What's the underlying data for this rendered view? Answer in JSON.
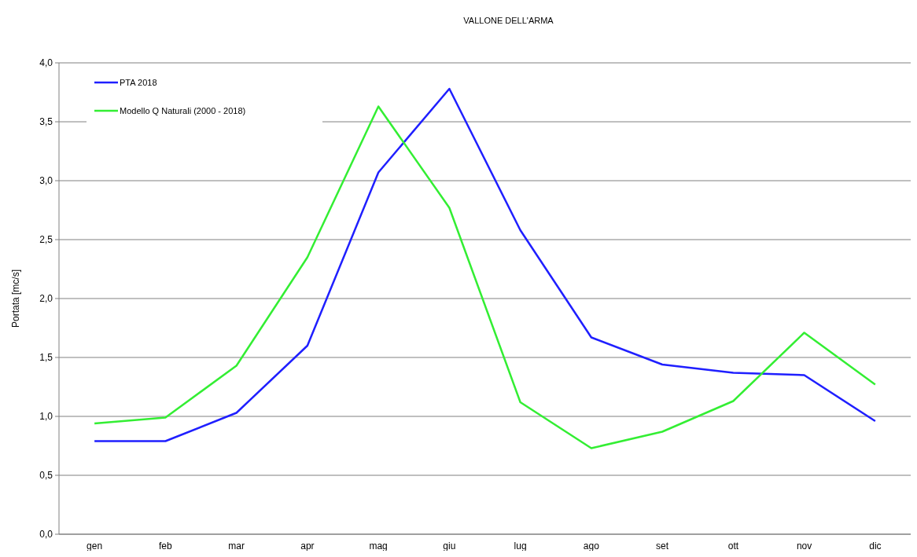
{
  "chart_data": {
    "type": "line",
    "title": "VALLONE DELL'ARMA",
    "ylabel": "Portata [mc/s]",
    "categories": [
      "gen",
      "feb",
      "mar",
      "apr",
      "mag",
      "giu",
      "lug",
      "ago",
      "set",
      "ott",
      "nov",
      "dic"
    ],
    "series": [
      {
        "name": "PTA 2018",
        "color": "#1f1fff",
        "values": [
          0.79,
          0.79,
          1.03,
          1.6,
          3.07,
          3.78,
          2.58,
          1.67,
          1.44,
          1.37,
          1.35,
          0.96
        ]
      },
      {
        "name": "Modello Q Naturali (2000 - 2018)",
        "color": "#33ee33",
        "values": [
          0.94,
          0.99,
          1.43,
          2.35,
          3.63,
          2.77,
          1.12,
          0.73,
          0.87,
          1.13,
          1.71,
          1.27
        ]
      }
    ],
    "ylim": [
      0,
      4
    ],
    "yticks": [
      {
        "value": 0,
        "label": "0,0"
      },
      {
        "value": 0.5,
        "label": "0,5"
      },
      {
        "value": 1,
        "label": "1,0"
      },
      {
        "value": 1.5,
        "label": "1,5"
      },
      {
        "value": 2,
        "label": "2,0"
      },
      {
        "value": 2.5,
        "label": "2,5"
      },
      {
        "value": 3,
        "label": "3,0"
      },
      {
        "value": 3.5,
        "label": "3,5"
      },
      {
        "value": 4,
        "label": "4,0"
      }
    ],
    "grid": "y",
    "legend": "top left",
    "marker": "none",
    "line_style": "solid"
  }
}
